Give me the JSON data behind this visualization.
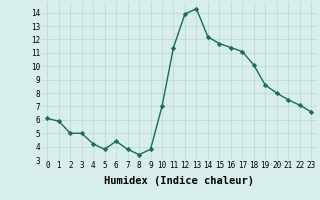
{
  "x": [
    0,
    1,
    2,
    3,
    4,
    5,
    6,
    7,
    8,
    9,
    10,
    11,
    12,
    13,
    14,
    15,
    16,
    17,
    18,
    19,
    20,
    21,
    22,
    23
  ],
  "y": [
    6.1,
    5.9,
    5.0,
    5.0,
    4.2,
    3.8,
    4.4,
    3.8,
    3.4,
    3.8,
    7.0,
    11.4,
    13.9,
    14.3,
    12.2,
    11.7,
    11.4,
    11.1,
    10.1,
    8.6,
    8.0,
    7.5,
    7.1,
    6.6
  ],
  "line_color": "#1a6b5a",
  "marker": "D",
  "marker_size": 2.2,
  "bg_color": "#d8eeea",
  "grid_color": "#b8d8d2",
  "xlabel": "Humidex (Indice chaleur)",
  "xlim": [
    -0.5,
    23.5
  ],
  "ylim": [
    3,
    14.8
  ],
  "yticks": [
    3,
    4,
    5,
    6,
    7,
    8,
    9,
    10,
    11,
    12,
    13,
    14
  ],
  "xticks": [
    0,
    1,
    2,
    3,
    4,
    5,
    6,
    7,
    8,
    9,
    10,
    11,
    12,
    13,
    14,
    15,
    16,
    17,
    18,
    19,
    20,
    21,
    22,
    23
  ],
  "tick_label_fontsize": 5.5,
  "xlabel_fontsize": 7.5,
  "line_width": 1.0
}
